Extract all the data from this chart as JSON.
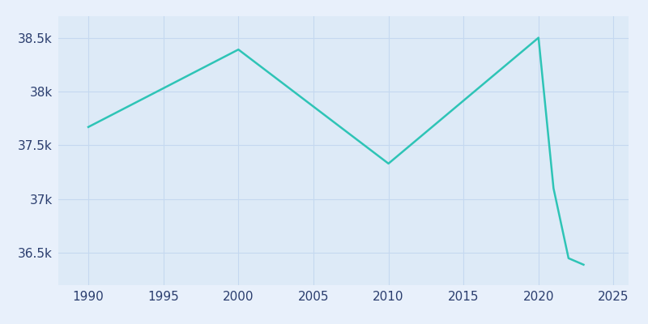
{
  "years": [
    1990,
    2000,
    2010,
    2020,
    2021,
    2022,
    2023
  ],
  "population": [
    37670,
    38390,
    37330,
    38500,
    37100,
    36450,
    36390
  ],
  "line_color": "#2ec4b6",
  "bg_color": "#ddeaf7",
  "figure_bg": "#e8f0fb",
  "xlim": [
    1988,
    2026
  ],
  "ylim": [
    36200,
    38700
  ],
  "xticks": [
    1990,
    1995,
    2000,
    2005,
    2010,
    2015,
    2020,
    2025
  ],
  "ytick_values": [
    36500,
    37000,
    37500,
    38000,
    38500
  ],
  "ytick_labels": [
    "36.5k",
    "37k",
    "37.5k",
    "38k",
    "38.5k"
  ],
  "grid_color": "#c5d8f0",
  "tick_color": "#2a3d6e",
  "tick_fontsize": 11
}
